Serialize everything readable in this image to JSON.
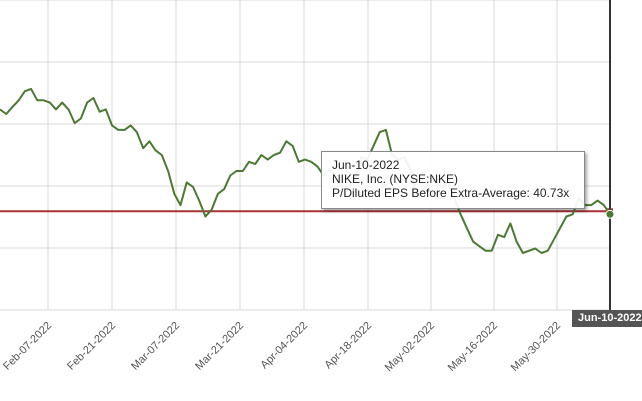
{
  "chart_data": {
    "type": "line",
    "x_tick_labels": [
      "Feb-07-2022",
      "Feb-21-2022",
      "Mar-07-2022",
      "Mar-21-2022",
      "Apr-04-2022",
      "Apr-18-2022",
      "May-02-2022",
      "May-16-2022",
      "May-30-2022"
    ],
    "series": [
      {
        "color": "#4a7a32",
        "values": [
          45.2,
          45.0,
          45.3,
          45.6,
          46.0,
          46.1,
          45.6,
          45.6,
          45.5,
          45.2,
          45.5,
          45.2,
          44.6,
          44.8,
          45.5,
          45.7,
          45.1,
          45.2,
          44.5,
          44.3,
          44.3,
          44.5,
          44.2,
          43.5,
          43.8,
          43.4,
          43.2,
          42.5,
          41.5,
          41.0,
          42.0,
          41.8,
          41.2,
          40.5,
          40.8,
          41.5,
          41.7,
          42.3,
          42.5,
          42.5,
          42.9,
          42.8,
          43.2,
          43.0,
          43.2,
          43.3,
          43.8,
          43.6,
          42.9,
          43.0,
          42.9,
          42.7,
          42.3,
          42.6,
          42.2,
          41.8,
          41.8,
          42.1,
          43.1,
          43.0,
          43.6,
          44.2,
          44.3,
          43.2,
          43.0,
          43.1,
          42.5,
          41.4,
          41.6,
          42.2,
          42.0,
          41.8,
          42.0,
          41.3,
          40.6,
          40.0,
          39.4,
          39.2,
          39.0,
          39.0,
          39.7,
          39.6,
          40.2,
          39.4,
          38.9,
          39.0,
          39.1,
          38.9,
          39.0,
          39.5,
          40.0,
          40.5,
          40.6,
          41.3,
          41.0,
          41.0,
          41.2,
          41.0,
          40.6
        ]
      }
    ],
    "average": 40.73,
    "ylim": [
      36.4,
      50.0
    ],
    "tooltip": {
      "date": "Jun-10-2022",
      "company": "NIKE, Inc. (NYSE:NKE)",
      "metric": "P/Diluted EPS Before Extra-Average: 40.73x"
    },
    "cursor_label": "Jun-10-2022",
    "average_line_color": "#a83232",
    "grid": true
  }
}
